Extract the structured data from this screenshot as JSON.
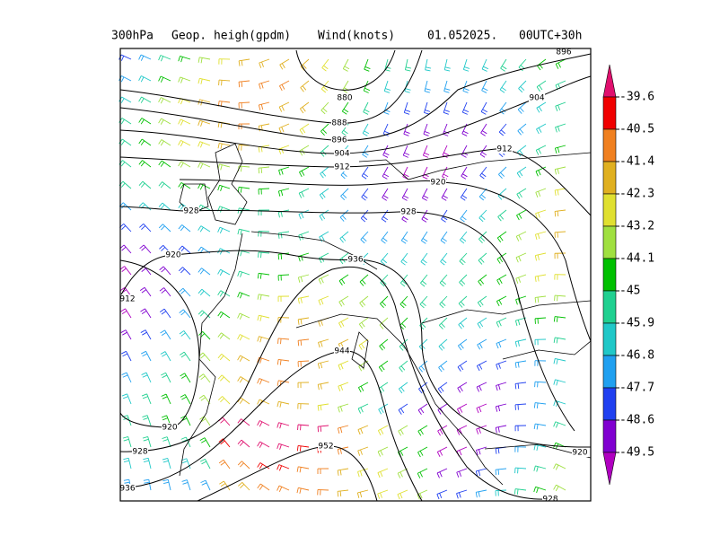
{
  "header": {
    "level": "300hPa",
    "field": "Geop. heigh(gpdm)",
    "wind": "Wind(knots)",
    "date": "01.052025.",
    "run": "00UTC+30h"
  },
  "contour_labels": [
    "896",
    "880",
    "888",
    "896",
    "904",
    "912",
    "904",
    "912",
    "920",
    "928",
    "928",
    "920",
    "936",
    "912",
    "944",
    "920",
    "928",
    "952",
    "936",
    "920",
    "928"
  ],
  "colorbar": {
    "labels": [
      "-39.6",
      "-40.5",
      "-41.4",
      "-42.3",
      "-43.2",
      "-44.1",
      "-45",
      "-45.9",
      "-46.8",
      "-47.7",
      "-48.6",
      "-49.5"
    ],
    "colors": [
      "#e0106e",
      "#f00000",
      "#f08020",
      "#e0b020",
      "#e0e030",
      "#a0e040",
      "#00c000",
      "#20d090",
      "#20c8c8",
      "#20a0f0",
      "#2040f0",
      "#8000d0",
      "#b000c0"
    ]
  }
}
